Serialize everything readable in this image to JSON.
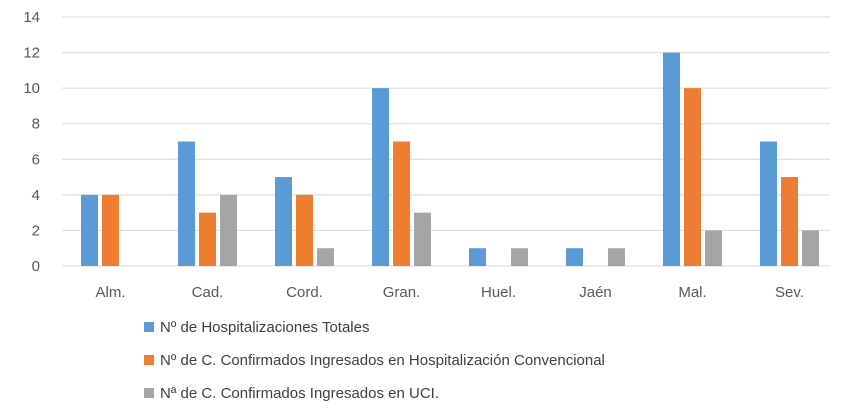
{
  "chart_data": {
    "type": "bar",
    "title": "",
    "xlabel": "",
    "ylabel": "",
    "categories": [
      "Alm.",
      "Cad.",
      "Cord.",
      "Gran.",
      "Huel.",
      "Jaén",
      "Mal.",
      "Sev."
    ],
    "series": [
      {
        "name": "Nº de Hospitalizaciones Totales",
        "color": "#5b9bd5",
        "values": [
          4,
          7,
          5,
          10,
          1,
          1,
          12,
          7
        ]
      },
      {
        "name": "Nº de C. Confirmados Ingresados en Hospitalización Convencional",
        "color": "#ed7d31",
        "values": [
          4,
          3,
          4,
          7,
          0,
          0,
          10,
          5
        ]
      },
      {
        "name": "Nª de C. Confirmados Ingresados en UCI.",
        "color": "#a5a5a5",
        "values": [
          0,
          4,
          1,
          3,
          1,
          1,
          2,
          2
        ]
      }
    ],
    "ylim": [
      0,
      14
    ],
    "yticks": [
      "0",
      "2",
      "4",
      "6",
      "8",
      "10",
      "12",
      "14"
    ],
    "grid": true,
    "gridline_color": "#d9d9d9",
    "legend_position": "bottom"
  }
}
